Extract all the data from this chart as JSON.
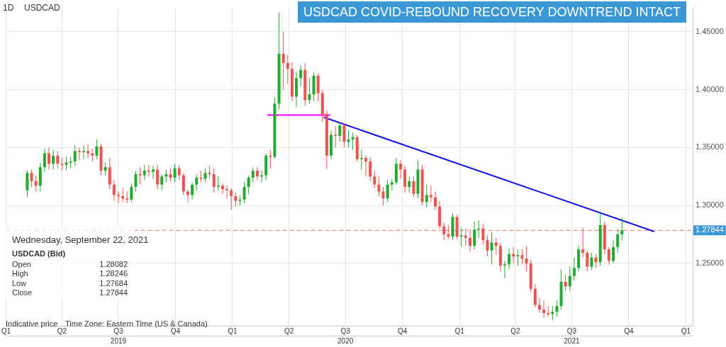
{
  "chart_data": {
    "type": "candlestick",
    "title": "USDCAD COVID-REBOUND RECOVERY DOWNTREND INTACT",
    "annotations": [
      "1D",
      "USDCAD",
      "Wednesday, September 22, 2021",
      "USDCAD (Bid)",
      "Open",
      "1.28082",
      "High",
      "1.28246",
      "Low",
      "1.27684",
      "Close",
      "1.27844",
      "Indicative price",
      "Time Zone: Eastern Time (US & Canada)"
    ],
    "x": [
      "2019-02-04",
      "2019-02-11",
      "2019-02-18",
      "2019-02-25",
      "2019-03-04",
      "2019-03-11",
      "2019-03-18",
      "2019-03-25",
      "2019-04-01",
      "2019-04-08",
      "2019-04-15",
      "2019-04-22",
      "2019-04-29",
      "2019-05-06",
      "2019-05-13",
      "2019-05-20",
      "2019-05-27",
      "2019-06-03",
      "2019-06-10",
      "2019-06-17",
      "2019-06-24",
      "2019-07-01",
      "2019-07-08",
      "2019-07-15",
      "2019-07-22",
      "2019-07-29",
      "2019-08-05",
      "2019-08-12",
      "2019-08-19",
      "2019-08-26",
      "2019-09-02",
      "2019-09-09",
      "2019-09-16",
      "2019-09-23",
      "2019-09-30",
      "2019-10-07",
      "2019-10-14",
      "2019-10-21",
      "2019-10-28",
      "2019-11-04",
      "2019-11-11",
      "2019-11-18",
      "2019-11-25",
      "2019-12-02",
      "2019-12-09",
      "2019-12-16",
      "2019-12-23",
      "2019-12-30",
      "2020-01-06",
      "2020-01-13",
      "2020-01-20",
      "2020-01-27",
      "2020-02-03",
      "2020-02-10",
      "2020-02-17",
      "2020-02-24",
      "2020-03-02",
      "2020-03-09",
      "2020-03-16",
      "2020-03-23",
      "2020-03-30",
      "2020-04-06",
      "2020-04-13",
      "2020-04-20",
      "2020-04-27",
      "2020-05-04",
      "2020-05-11",
      "2020-05-18",
      "2020-05-25",
      "2020-06-01",
      "2020-06-08",
      "2020-06-15",
      "2020-06-22",
      "2020-06-29",
      "2020-07-06",
      "2020-07-13",
      "2020-07-20",
      "2020-07-27",
      "2020-08-03",
      "2020-08-10",
      "2020-08-17",
      "2020-08-24",
      "2020-08-31",
      "2020-09-07",
      "2020-09-14",
      "2020-09-21",
      "2020-09-28",
      "2020-10-05",
      "2020-10-12",
      "2020-10-19",
      "2020-10-26",
      "2020-11-02",
      "2020-11-09",
      "2020-11-16",
      "2020-11-23",
      "2020-11-30",
      "2020-12-07",
      "2020-12-14",
      "2020-12-21",
      "2020-12-28",
      "2021-01-04",
      "2021-01-11",
      "2021-01-18",
      "2021-01-25",
      "2021-02-01",
      "2021-02-08",
      "2021-02-15",
      "2021-02-22",
      "2021-03-01",
      "2021-03-08",
      "2021-03-15",
      "2021-03-22",
      "2021-03-29",
      "2021-04-05",
      "2021-04-12",
      "2021-04-19",
      "2021-04-26",
      "2021-05-03",
      "2021-05-10",
      "2021-05-17",
      "2021-05-24",
      "2021-05-31",
      "2021-06-07",
      "2021-06-14",
      "2021-06-21",
      "2021-06-28",
      "2021-07-05",
      "2021-07-12",
      "2021-07-19",
      "2021-07-26",
      "2021-08-02",
      "2021-08-09",
      "2021-08-16",
      "2021-08-23",
      "2021-08-30",
      "2021-09-06",
      "2021-09-13",
      "2021-09-20"
    ],
    "ohlc": [
      [
        1.313,
        1.33,
        1.307,
        1.328
      ],
      [
        1.328,
        1.331,
        1.316,
        1.321
      ],
      [
        1.321,
        1.326,
        1.312,
        1.317
      ],
      [
        1.317,
        1.337,
        1.312,
        1.333
      ],
      [
        1.333,
        1.349,
        1.329,
        1.345
      ],
      [
        1.345,
        1.35,
        1.331,
        1.336
      ],
      [
        1.336,
        1.348,
        1.331,
        1.343
      ],
      [
        1.343,
        1.347,
        1.332,
        1.336
      ],
      [
        1.336,
        1.341,
        1.33,
        1.335
      ],
      [
        1.335,
        1.342,
        1.33,
        1.337
      ],
      [
        1.337,
        1.342,
        1.332,
        1.338
      ],
      [
        1.338,
        1.352,
        1.334,
        1.347
      ],
      [
        1.347,
        1.35,
        1.339,
        1.346
      ],
      [
        1.346,
        1.352,
        1.34,
        1.347
      ],
      [
        1.347,
        1.353,
        1.341,
        1.345
      ],
      [
        1.345,
        1.349,
        1.338,
        1.343
      ],
      [
        1.343,
        1.357,
        1.34,
        1.351
      ],
      [
        1.351,
        1.353,
        1.326,
        1.33
      ],
      [
        1.33,
        1.337,
        1.326,
        1.333
      ],
      [
        1.333,
        1.341,
        1.314,
        1.318
      ],
      [
        1.318,
        1.322,
        1.304,
        1.309
      ],
      [
        1.309,
        1.312,
        1.302,
        1.308
      ],
      [
        1.308,
        1.315,
        1.303,
        1.306
      ],
      [
        1.306,
        1.312,
        1.302,
        1.305
      ],
      [
        1.305,
        1.319,
        1.303,
        1.316
      ],
      [
        1.316,
        1.33,
        1.312,
        1.327
      ],
      [
        1.327,
        1.333,
        1.318,
        1.326
      ],
      [
        1.326,
        1.335,
        1.322,
        1.33
      ],
      [
        1.33,
        1.335,
        1.325,
        1.329
      ],
      [
        1.329,
        1.334,
        1.323,
        1.331
      ],
      [
        1.331,
        1.335,
        1.314,
        1.318
      ],
      [
        1.318,
        1.327,
        1.313,
        1.325
      ],
      [
        1.325,
        1.331,
        1.32,
        1.327
      ],
      [
        1.327,
        1.332,
        1.321,
        1.324
      ],
      [
        1.324,
        1.336,
        1.32,
        1.332
      ],
      [
        1.332,
        1.335,
        1.322,
        1.326
      ],
      [
        1.326,
        1.328,
        1.309,
        1.312
      ],
      [
        1.312,
        1.314,
        1.303,
        1.309
      ],
      [
        1.309,
        1.32,
        1.305,
        1.318
      ],
      [
        1.318,
        1.327,
        1.313,
        1.324
      ],
      [
        1.324,
        1.33,
        1.32,
        1.323
      ],
      [
        1.323,
        1.332,
        1.32,
        1.328
      ],
      [
        1.328,
        1.334,
        1.323,
        1.327
      ],
      [
        1.327,
        1.332,
        1.311,
        1.316
      ],
      [
        1.316,
        1.325,
        1.313,
        1.317
      ],
      [
        1.317,
        1.319,
        1.31,
        1.314
      ],
      [
        1.314,
        1.317,
        1.306,
        1.313
      ],
      [
        1.313,
        1.315,
        1.296,
        1.308
      ],
      [
        1.308,
        1.311,
        1.299,
        1.304
      ],
      [
        1.304,
        1.309,
        1.3,
        1.305
      ],
      [
        1.305,
        1.32,
        1.302,
        1.316
      ],
      [
        1.316,
        1.326,
        1.31,
        1.324
      ],
      [
        1.324,
        1.333,
        1.32,
        1.33
      ],
      [
        1.33,
        1.333,
        1.322,
        1.325
      ],
      [
        1.325,
        1.33,
        1.32,
        1.326
      ],
      [
        1.326,
        1.345,
        1.322,
        1.343
      ],
      [
        1.343,
        1.348,
        1.332,
        1.342
      ],
      [
        1.342,
        1.393,
        1.34,
        1.388
      ],
      [
        1.388,
        1.4668,
        1.383,
        1.431
      ],
      [
        1.431,
        1.45,
        1.4,
        1.423
      ],
      [
        1.423,
        1.43,
        1.405,
        1.418
      ],
      [
        1.418,
        1.424,
        1.39,
        1.394
      ],
      [
        1.394,
        1.416,
        1.385,
        1.41
      ],
      [
        1.41,
        1.421,
        1.403,
        1.417
      ],
      [
        1.417,
        1.423,
        1.386,
        1.391
      ],
      [
        1.391,
        1.41,
        1.388,
        1.396
      ],
      [
        1.396,
        1.415,
        1.39,
        1.412
      ],
      [
        1.412,
        1.414,
        1.39,
        1.397
      ],
      [
        1.397,
        1.4,
        1.372,
        1.379
      ],
      [
        1.379,
        1.382,
        1.3315,
        1.343
      ],
      [
        1.343,
        1.365,
        1.34,
        1.361
      ],
      [
        1.361,
        1.368,
        1.35,
        1.36
      ],
      [
        1.36,
        1.372,
        1.355,
        1.369
      ],
      [
        1.369,
        1.371,
        1.35,
        1.355
      ],
      [
        1.355,
        1.365,
        1.35,
        1.357
      ],
      [
        1.357,
        1.363,
        1.348,
        1.359
      ],
      [
        1.359,
        1.361,
        1.338,
        1.34
      ],
      [
        1.34,
        1.348,
        1.331,
        1.341
      ],
      [
        1.341,
        1.343,
        1.325,
        1.338
      ],
      [
        1.338,
        1.342,
        1.321,
        1.325
      ],
      [
        1.325,
        1.33,
        1.315,
        1.318
      ],
      [
        1.318,
        1.325,
        1.308,
        1.312
      ],
      [
        1.312,
        1.316,
        1.3,
        1.306
      ],
      [
        1.306,
        1.322,
        1.303,
        1.318
      ],
      [
        1.318,
        1.323,
        1.313,
        1.32
      ],
      [
        1.32,
        1.341,
        1.318,
        1.336
      ],
      [
        1.336,
        1.339,
        1.323,
        1.331
      ],
      [
        1.331,
        1.334,
        1.311,
        1.316
      ],
      [
        1.316,
        1.325,
        1.311,
        1.321
      ],
      [
        1.321,
        1.325,
        1.307,
        1.31
      ],
      [
        1.31,
        1.339,
        1.306,
        1.331
      ],
      [
        1.331,
        1.335,
        1.3,
        1.303
      ],
      [
        1.303,
        1.318,
        1.298,
        1.309
      ],
      [
        1.309,
        1.317,
        1.303,
        1.307
      ],
      [
        1.307,
        1.312,
        1.296,
        1.299
      ],
      [
        1.299,
        1.304,
        1.28,
        1.282
      ],
      [
        1.282,
        1.285,
        1.27,
        1.275
      ],
      [
        1.275,
        1.283,
        1.271,
        1.273
      ],
      [
        1.273,
        1.293,
        1.27,
        1.29
      ],
      [
        1.29,
        1.292,
        1.271,
        1.273
      ],
      [
        1.273,
        1.281,
        1.264,
        1.274
      ],
      [
        1.274,
        1.28,
        1.265,
        1.272
      ],
      [
        1.272,
        1.278,
        1.26,
        1.265
      ],
      [
        1.265,
        1.286,
        1.262,
        1.279
      ],
      [
        1.279,
        1.287,
        1.272,
        1.28
      ],
      [
        1.28,
        1.284,
        1.266,
        1.27
      ],
      [
        1.27,
        1.274,
        1.256,
        1.261
      ],
      [
        1.261,
        1.277,
        1.249,
        1.268
      ],
      [
        1.268,
        1.272,
        1.257,
        1.265
      ],
      [
        1.265,
        1.268,
        1.243,
        1.248
      ],
      [
        1.248,
        1.252,
        1.237,
        1.249
      ],
      [
        1.249,
        1.263,
        1.245,
        1.258
      ],
      [
        1.258,
        1.264,
        1.25,
        1.256
      ],
      [
        1.256,
        1.262,
        1.248,
        1.257
      ],
      [
        1.257,
        1.262,
        1.249,
        1.254
      ],
      [
        1.254,
        1.265,
        1.243,
        1.25
      ],
      [
        1.25,
        1.253,
        1.225,
        1.228
      ],
      [
        1.228,
        1.232,
        1.212,
        1.214
      ],
      [
        1.214,
        1.22,
        1.207,
        1.21
      ],
      [
        1.21,
        1.218,
        1.203,
        1.207
      ],
      [
        1.207,
        1.213,
        1.204,
        1.206
      ],
      [
        1.206,
        1.213,
        1.2007,
        1.208
      ],
      [
        1.208,
        1.218,
        1.204,
        1.213
      ],
      [
        1.213,
        1.245,
        1.21,
        1.234
      ],
      [
        1.234,
        1.24,
        1.226,
        1.23
      ],
      [
        1.23,
        1.247,
        1.226,
        1.239
      ],
      [
        1.239,
        1.255,
        1.235,
        1.246
      ],
      [
        1.246,
        1.265,
        1.243,
        1.262
      ],
      [
        1.262,
        1.2807,
        1.255,
        1.259
      ],
      [
        1.259,
        1.261,
        1.243,
        1.247
      ],
      [
        1.247,
        1.259,
        1.244,
        1.255
      ],
      [
        1.255,
        1.258,
        1.246,
        1.251
      ],
      [
        1.251,
        1.2949,
        1.248,
        1.283
      ],
      [
        1.283,
        1.286,
        1.258,
        1.262
      ],
      [
        1.262,
        1.264,
        1.249,
        1.252
      ],
      [
        1.252,
        1.27,
        1.25,
        1.264
      ],
      [
        1.264,
        1.279,
        1.259,
        1.275
      ],
      [
        1.275,
        1.2896,
        1.27,
        1.27844
      ]
    ],
    "colors": [
      "#22ab30",
      "#ef5350",
      "#ef5350",
      "#22ab30",
      "#22ab30",
      "#ef5350",
      "#22ab30",
      "#ef5350",
      "#ef5350",
      "#22ab30",
      "#22ab30",
      "#22ab30",
      "#ef5350",
      "#22ab30",
      "#ef5350",
      "#ef5350",
      "#22ab30",
      "#ef5350",
      "#22ab30",
      "#ef5350",
      "#ef5350",
      "#ef5350",
      "#ef5350",
      "#ef5350",
      "#22ab30",
      "#22ab30",
      "#ef5350",
      "#22ab30",
      "#ef5350",
      "#22ab30",
      "#ef5350",
      "#22ab30",
      "#22ab30",
      "#ef5350",
      "#22ab30",
      "#ef5350",
      "#ef5350",
      "#ef5350",
      "#22ab30",
      "#22ab30",
      "#ef5350",
      "#22ab30",
      "#ef5350",
      "#ef5350",
      "#22ab30",
      "#ef5350",
      "#ef5350",
      "#ef5350",
      "#ef5350",
      "#22ab30",
      "#22ab30",
      "#22ab30",
      "#22ab30",
      "#ef5350",
      "#22ab30",
      "#22ab30",
      "#ef5350",
      "#22ab30",
      "#22ab30",
      "#ef5350",
      "#ef5350",
      "#ef5350",
      "#22ab30",
      "#22ab30",
      "#ef5350",
      "#22ab30",
      "#22ab30",
      "#ef5350",
      "#ef5350",
      "#ef5350",
      "#22ab30",
      "#ef5350",
      "#22ab30",
      "#ef5350",
      "#22ab30",
      "#22ab30",
      "#ef5350",
      "#22ab30",
      "#ef5350",
      "#ef5350",
      "#ef5350",
      "#ef5350",
      "#ef5350",
      "#22ab30",
      "#22ab30",
      "#22ab30",
      "#ef5350",
      "#ef5350",
      "#22ab30",
      "#ef5350",
      "#22ab30",
      "#ef5350",
      "#22ab30",
      "#ef5350",
      "#ef5350",
      "#ef5350",
      "#ef5350",
      "#ef5350",
      "#22ab30",
      "#ef5350",
      "#22ab30",
      "#ef5350",
      "#ef5350",
      "#22ab30",
      "#22ab30",
      "#ef5350",
      "#ef5350",
      "#22ab30",
      "#ef5350",
      "#ef5350",
      "#22ab30",
      "#22ab30",
      "#ef5350",
      "#22ab30",
      "#ef5350",
      "#ef5350",
      "#ef5350",
      "#ef5350",
      "#ef5350",
      "#ef5350",
      "#ef5350",
      "#22ab30",
      "#22ab30",
      "#22ab30",
      "#ef5350",
      "#22ab30",
      "#22ab30",
      "#22ab30",
      "#ef5350",
      "#ef5350",
      "#22ab30",
      "#ef5350",
      "#22ab30",
      "#ef5350",
      "#ef5350",
      "#22ab30",
      "#22ab30",
      "#22ab30"
    ],
    "series": [
      {
        "type": "line",
        "x": [
          "2020-02-26",
          "2020-06-07"
        ],
        "values": [
          1.378,
          1.378
        ],
        "color": "#ff00ff"
      },
      {
        "type": "line",
        "x": [
          "2020-05-27",
          "2021-11-11"
        ],
        "values": [
          1.3762,
          1.2774
        ],
        "color": "#1010e8"
      }
    ],
    "ref_lines": [
      {
        "axis": "y",
        "value": 1.27844,
        "label": "1.27844",
        "color": "#f07070",
        "line_style": "dashed"
      }
    ],
    "xlim": [
      "2019-01-01",
      "2022-01-12"
    ],
    "xticks": [
      {
        "value": "2019-01-01",
        "label": "Q1"
      },
      {
        "value": "2019-04-01",
        "label": "Q2"
      },
      {
        "value": "2019-07-01",
        "label": "Q3"
      },
      {
        "value": "2019-10-01",
        "label": "Q4"
      },
      {
        "value": "2020-01-01",
        "label": "Q1"
      },
      {
        "value": "2020-04-01",
        "label": "Q2"
      },
      {
        "value": "2020-07-01",
        "label": "Q3"
      },
      {
        "value": "2020-10-01",
        "label": "Q4"
      },
      {
        "value": "2021-01-01",
        "label": "Q1"
      },
      {
        "value": "2021-04-01",
        "label": "Q2"
      },
      {
        "value": "2021-07-01",
        "label": "Q3"
      },
      {
        "value": "2021-10-01",
        "label": "Q4"
      },
      {
        "value": "2022-01-01",
        "label": "Q1"
      }
    ],
    "x2lim": [
      "2019-01-01",
      "2022-01-12"
    ],
    "x2ticks": [
      {
        "value": "2019-07-01",
        "label": "2019"
      },
      {
        "value": "2020-07-01",
        "label": "2020"
      },
      {
        "value": "2021-07-01",
        "label": "2021"
      }
    ],
    "ylim": [
      1.196,
      1.471
    ],
    "yticks": [
      {
        "value": 1.25,
        "label": "1.25000"
      },
      {
        "value": 1.3,
        "label": "1.30000"
      },
      {
        "value": 1.35,
        "label": "1.35000"
      },
      {
        "value": 1.4,
        "label": "1.40000"
      },
      {
        "value": 1.45,
        "label": "1.45000"
      }
    ],
    "grid": true,
    "legend": false
  }
}
